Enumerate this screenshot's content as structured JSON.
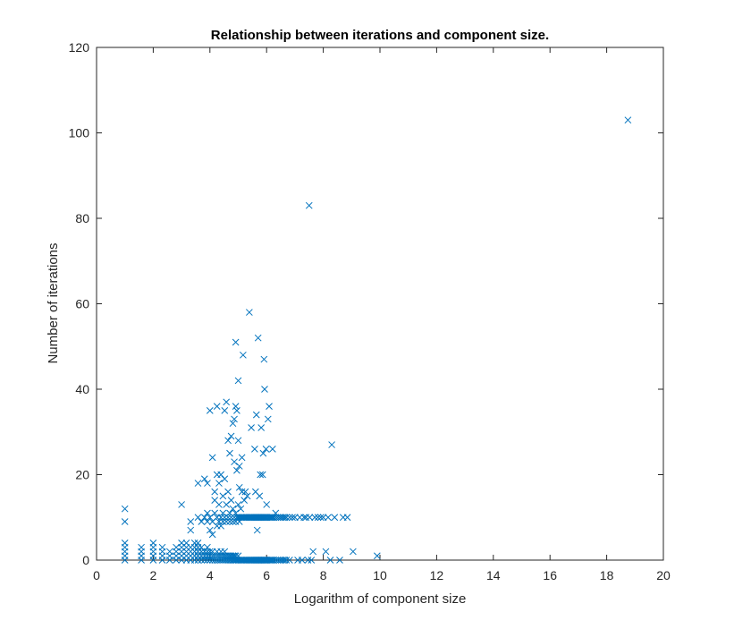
{
  "chart_data": {
    "type": "scatter",
    "title": "Relationship between iterations and component size.",
    "xlabel": "Logarithm of component size",
    "ylabel": "Number of iterations",
    "xlim": [
      0,
      20
    ],
    "ylim": [
      0,
      120
    ],
    "xticks": [
      0,
      2,
      4,
      6,
      8,
      10,
      12,
      14,
      16,
      18,
      20
    ],
    "yticks": [
      0,
      20,
      40,
      60,
      80,
      100,
      120
    ],
    "marker": "x",
    "grid": false,
    "colors": {
      "series": "#0072BD",
      "axis": "#262626",
      "background": "#ffffff"
    },
    "series": [
      {
        "points": [
          [
            1.0,
            0
          ],
          [
            1.0,
            1
          ],
          [
            1.0,
            2
          ],
          [
            1.0,
            3
          ],
          [
            1.0,
            4
          ],
          [
            1.0,
            9
          ],
          [
            1.0,
            12
          ],
          [
            1.58,
            0
          ],
          [
            1.58,
            1
          ],
          [
            1.58,
            2
          ],
          [
            1.58,
            3
          ],
          [
            2.0,
            0
          ],
          [
            2.0,
            1
          ],
          [
            2.0,
            2
          ],
          [
            2.0,
            3
          ],
          [
            2.0,
            4
          ],
          [
            2.32,
            0
          ],
          [
            2.32,
            1
          ],
          [
            2.32,
            2
          ],
          [
            2.32,
            3
          ],
          [
            2.58,
            0
          ],
          [
            2.58,
            1
          ],
          [
            2.58,
            2
          ],
          [
            2.81,
            0
          ],
          [
            2.81,
            1
          ],
          [
            2.81,
            2
          ],
          [
            2.81,
            3
          ],
          [
            3.0,
            0
          ],
          [
            3.0,
            1
          ],
          [
            3.0,
            2
          ],
          [
            3.0,
            3
          ],
          [
            3.0,
            4
          ],
          [
            3.0,
            13
          ],
          [
            3.17,
            0
          ],
          [
            3.17,
            1
          ],
          [
            3.17,
            2
          ],
          [
            3.17,
            3
          ],
          [
            3.17,
            4
          ],
          [
            3.32,
            0
          ],
          [
            3.32,
            1
          ],
          [
            3.32,
            2
          ],
          [
            3.32,
            3
          ],
          [
            3.32,
            7
          ],
          [
            3.32,
            9
          ],
          [
            3.46,
            0
          ],
          [
            3.46,
            1
          ],
          [
            3.46,
            2
          ],
          [
            3.46,
            3
          ],
          [
            3.46,
            4
          ],
          [
            3.58,
            0
          ],
          [
            3.58,
            1
          ],
          [
            3.58,
            2
          ],
          [
            3.58,
            3
          ],
          [
            3.58,
            4
          ],
          [
            3.58,
            10
          ],
          [
            3.58,
            18
          ],
          [
            3.7,
            0
          ],
          [
            3.7,
            1
          ],
          [
            3.7,
            2
          ],
          [
            3.7,
            3
          ],
          [
            3.7,
            9
          ],
          [
            3.81,
            0
          ],
          [
            3.81,
            1
          ],
          [
            3.81,
            2
          ],
          [
            3.81,
            10
          ],
          [
            3.81,
            19
          ],
          [
            3.91,
            0
          ],
          [
            3.91,
            1
          ],
          [
            3.91,
            2
          ],
          [
            3.91,
            3
          ],
          [
            3.91,
            9
          ],
          [
            3.91,
            11
          ],
          [
            3.91,
            18
          ],
          [
            4.0,
            0
          ],
          [
            4.0,
            1
          ],
          [
            4.0,
            2
          ],
          [
            4.0,
            7
          ],
          [
            4.0,
            10
          ],
          [
            4.0,
            35
          ],
          [
            4.09,
            0
          ],
          [
            4.09,
            1
          ],
          [
            4.09,
            2
          ],
          [
            4.09,
            6
          ],
          [
            4.09,
            9
          ],
          [
            4.09,
            24
          ],
          [
            4.17,
            0
          ],
          [
            4.17,
            1
          ],
          [
            4.17,
            11
          ],
          [
            4.17,
            14
          ],
          [
            4.17,
            16
          ],
          [
            4.25,
            0
          ],
          [
            4.25,
            1
          ],
          [
            4.25,
            2
          ],
          [
            4.25,
            8
          ],
          [
            4.25,
            10
          ],
          [
            4.25,
            20
          ],
          [
            4.25,
            36
          ],
          [
            4.32,
            0
          ],
          [
            4.32,
            1
          ],
          [
            4.32,
            9
          ],
          [
            4.32,
            13
          ],
          [
            4.32,
            18
          ],
          [
            4.39,
            0
          ],
          [
            4.39,
            1
          ],
          [
            4.39,
            2
          ],
          [
            4.39,
            8
          ],
          [
            4.39,
            10
          ],
          [
            4.39,
            20
          ],
          [
            4.46,
            0
          ],
          [
            4.46,
            1
          ],
          [
            4.46,
            9
          ],
          [
            4.46,
            11
          ],
          [
            4.46,
            15
          ],
          [
            4.52,
            0
          ],
          [
            4.52,
            1
          ],
          [
            4.52,
            2
          ],
          [
            4.52,
            10
          ],
          [
            4.52,
            19
          ],
          [
            4.52,
            35
          ],
          [
            4.58,
            0
          ],
          [
            4.58,
            1
          ],
          [
            4.58,
            9
          ],
          [
            4.58,
            13
          ],
          [
            4.58,
            37
          ],
          [
            4.64,
            0
          ],
          [
            4.64,
            1
          ],
          [
            4.64,
            10
          ],
          [
            4.64,
            16
          ],
          [
            4.64,
            28
          ],
          [
            4.7,
            0
          ],
          [
            4.7,
            1
          ],
          [
            4.7,
            9
          ],
          [
            4.7,
            11
          ],
          [
            4.7,
            25
          ],
          [
            4.75,
            0
          ],
          [
            4.75,
            1
          ],
          [
            4.75,
            10
          ],
          [
            4.75,
            14
          ],
          [
            4.75,
            29
          ],
          [
            4.81,
            0
          ],
          [
            4.81,
            1
          ],
          [
            4.81,
            9
          ],
          [
            4.81,
            12
          ],
          [
            4.81,
            32
          ],
          [
            4.86,
            0
          ],
          [
            4.86,
            1
          ],
          [
            4.86,
            10
          ],
          [
            4.86,
            23
          ],
          [
            4.86,
            33
          ],
          [
            4.91,
            0
          ],
          [
            4.91,
            1
          ],
          [
            4.91,
            9
          ],
          [
            4.91,
            11
          ],
          [
            4.91,
            36
          ],
          [
            4.91,
            51
          ],
          [
            4.95,
            0
          ],
          [
            4.95,
            10
          ],
          [
            4.95,
            21
          ],
          [
            4.95,
            35
          ],
          [
            5.0,
            0
          ],
          [
            5.0,
            1
          ],
          [
            5.0,
            10
          ],
          [
            5.0,
            13
          ],
          [
            5.0,
            28
          ],
          [
            5.0,
            42
          ],
          [
            5.04,
            0
          ],
          [
            5.04,
            9
          ],
          [
            5.04,
            10
          ],
          [
            5.04,
            17
          ],
          [
            5.04,
            22
          ],
          [
            5.09,
            0
          ],
          [
            5.09,
            10
          ],
          [
            5.09,
            12
          ],
          [
            5.13,
            0
          ],
          [
            5.13,
            10
          ],
          [
            5.13,
            16
          ],
          [
            5.13,
            24
          ],
          [
            5.17,
            0
          ],
          [
            5.17,
            10
          ],
          [
            5.17,
            48
          ],
          [
            5.21,
            0
          ],
          [
            5.21,
            10
          ],
          [
            5.21,
            14
          ],
          [
            5.25,
            0
          ],
          [
            5.25,
            10
          ],
          [
            5.25,
            16
          ],
          [
            5.29,
            0
          ],
          [
            5.29,
            10
          ],
          [
            5.32,
            0
          ],
          [
            5.32,
            10
          ],
          [
            5.32,
            15
          ],
          [
            5.36,
            0
          ],
          [
            5.36,
            10
          ],
          [
            5.39,
            0
          ],
          [
            5.39,
            10
          ],
          [
            5.39,
            58
          ],
          [
            5.43,
            0
          ],
          [
            5.43,
            10
          ],
          [
            5.46,
            0
          ],
          [
            5.46,
            10
          ],
          [
            5.46,
            31
          ],
          [
            5.49,
            0
          ],
          [
            5.49,
            10
          ],
          [
            5.52,
            0
          ],
          [
            5.52,
            10
          ],
          [
            5.55,
            0
          ],
          [
            5.55,
            10
          ],
          [
            5.58,
            0
          ],
          [
            5.58,
            10
          ],
          [
            5.58,
            26
          ],
          [
            5.61,
            0
          ],
          [
            5.61,
            10
          ],
          [
            5.61,
            16
          ],
          [
            5.64,
            0
          ],
          [
            5.64,
            10
          ],
          [
            5.64,
            34
          ],
          [
            5.67,
            0
          ],
          [
            5.67,
            10
          ],
          [
            5.67,
            7
          ],
          [
            5.7,
            0
          ],
          [
            5.7,
            10
          ],
          [
            5.7,
            52
          ],
          [
            5.73,
            0
          ],
          [
            5.73,
            10
          ],
          [
            5.75,
            0
          ],
          [
            5.75,
            10
          ],
          [
            5.75,
            15
          ],
          [
            5.78,
            0
          ],
          [
            5.78,
            10
          ],
          [
            5.78,
            20
          ],
          [
            5.81,
            0
          ],
          [
            5.81,
            10
          ],
          [
            5.81,
            31
          ],
          [
            5.83,
            0
          ],
          [
            5.83,
            10
          ],
          [
            5.86,
            0
          ],
          [
            5.86,
            10
          ],
          [
            5.86,
            20
          ],
          [
            5.88,
            0
          ],
          [
            5.88,
            10
          ],
          [
            5.88,
            25
          ],
          [
            5.91,
            0
          ],
          [
            5.91,
            10
          ],
          [
            5.91,
            47
          ],
          [
            5.93,
            0
          ],
          [
            5.93,
            10
          ],
          [
            5.93,
            40
          ],
          [
            5.95,
            0
          ],
          [
            5.95,
            10
          ],
          [
            5.98,
            0
          ],
          [
            5.98,
            10
          ],
          [
            5.98,
            26
          ],
          [
            6.0,
            0
          ],
          [
            6.0,
            10
          ],
          [
            6.0,
            13
          ],
          [
            6.05,
            0
          ],
          [
            6.05,
            10
          ],
          [
            6.05,
            33
          ],
          [
            6.09,
            0
          ],
          [
            6.09,
            10
          ],
          [
            6.09,
            36
          ],
          [
            6.13,
            0
          ],
          [
            6.13,
            10
          ],
          [
            6.17,
            0
          ],
          [
            6.17,
            10
          ],
          [
            6.21,
            0
          ],
          [
            6.21,
            10
          ],
          [
            6.21,
            26
          ],
          [
            6.25,
            0
          ],
          [
            6.25,
            10
          ],
          [
            6.32,
            0
          ],
          [
            6.32,
            10
          ],
          [
            6.32,
            11
          ],
          [
            6.39,
            0
          ],
          [
            6.39,
            10
          ],
          [
            6.46,
            0
          ],
          [
            6.46,
            10
          ],
          [
            6.52,
            0
          ],
          [
            6.52,
            10
          ],
          [
            6.58,
            0
          ],
          [
            6.58,
            10
          ],
          [
            6.64,
            0
          ],
          [
            6.64,
            10
          ],
          [
            6.7,
            0
          ],
          [
            6.7,
            10
          ],
          [
            6.81,
            0
          ],
          [
            6.81,
            10
          ],
          [
            6.91,
            10
          ],
          [
            7.0,
            10
          ],
          [
            7.1,
            0
          ],
          [
            7.17,
            10
          ],
          [
            7.25,
            0
          ],
          [
            7.32,
            10
          ],
          [
            7.39,
            10
          ],
          [
            7.46,
            0
          ],
          [
            7.52,
            10
          ],
          [
            7.58,
            0
          ],
          [
            7.64,
            2
          ],
          [
            7.7,
            10
          ],
          [
            7.5,
            83
          ],
          [
            7.81,
            10
          ],
          [
            7.91,
            10
          ],
          [
            8.0,
            10
          ],
          [
            8.09,
            2
          ],
          [
            8.17,
            10
          ],
          [
            8.25,
            0
          ],
          [
            8.3,
            27
          ],
          [
            8.4,
            10
          ],
          [
            8.58,
            0
          ],
          [
            8.7,
            10
          ],
          [
            8.85,
            10
          ],
          [
            9.05,
            2
          ],
          [
            9.9,
            1
          ],
          [
            18.75,
            103
          ]
        ]
      }
    ]
  }
}
